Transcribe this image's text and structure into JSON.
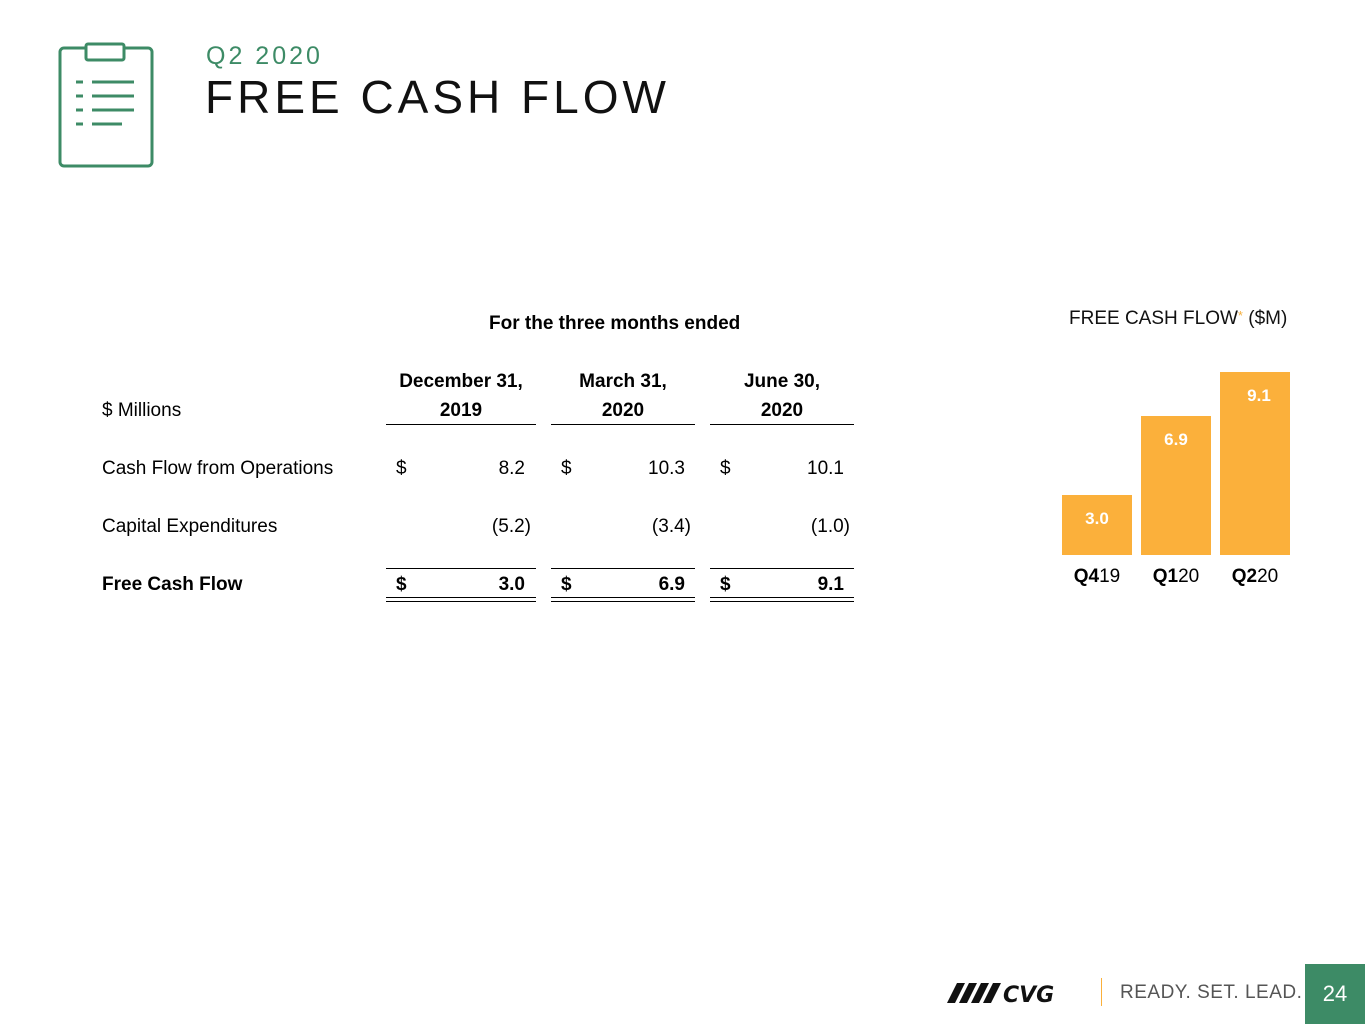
{
  "header": {
    "subtitle": "Q2 2020",
    "title": "FREE CASH FLOW",
    "icon": "clipboard-icon"
  },
  "table": {
    "group_header": "For the three months ended",
    "unit_label": "$ Millions",
    "columns": [
      {
        "line1": "December 31,",
        "line2": "2019"
      },
      {
        "line1": "March 31,",
        "line2": "2020"
      },
      {
        "line1": "June 30,",
        "line2": "2020"
      }
    ],
    "rows": [
      {
        "label": "Cash Flow from Operations",
        "cells": [
          {
            "cur": "$",
            "val": "8.2"
          },
          {
            "cur": "$",
            "val": "10.3"
          },
          {
            "cur": "$",
            "val": "10.1"
          }
        ]
      },
      {
        "label": "Capital Expenditures",
        "cells": [
          {
            "cur": "",
            "val": "(5.2)"
          },
          {
            "cur": "",
            "val": "(3.4)"
          },
          {
            "cur": "",
            "val": "(1.0)"
          }
        ]
      },
      {
        "label": "Free Cash Flow",
        "cells": [
          {
            "cur": "$",
            "val": "3.0"
          },
          {
            "cur": "$",
            "val": "6.9"
          },
          {
            "cur": "$",
            "val": "9.1"
          }
        ]
      }
    ]
  },
  "chart_data": {
    "type": "bar",
    "title": "FREE CASH FLOW",
    "title_marker": "*",
    "title_unit": "($M)",
    "categories": [
      {
        "bold": "Q4",
        "rest": "19"
      },
      {
        "bold": "Q1",
        "rest": "20"
      },
      {
        "bold": "Q2",
        "rest": "20"
      }
    ],
    "values": [
      3.0,
      6.9,
      9.1
    ],
    "value_labels": [
      "3.0",
      "6.9",
      "9.1"
    ],
    "bar_color": "#fbb03b",
    "grid": false
  },
  "footer": {
    "logo_text": "CVG",
    "tagline": "READY. SET. LEAD.",
    "page_number": "24",
    "accent": "#3d8b66"
  }
}
